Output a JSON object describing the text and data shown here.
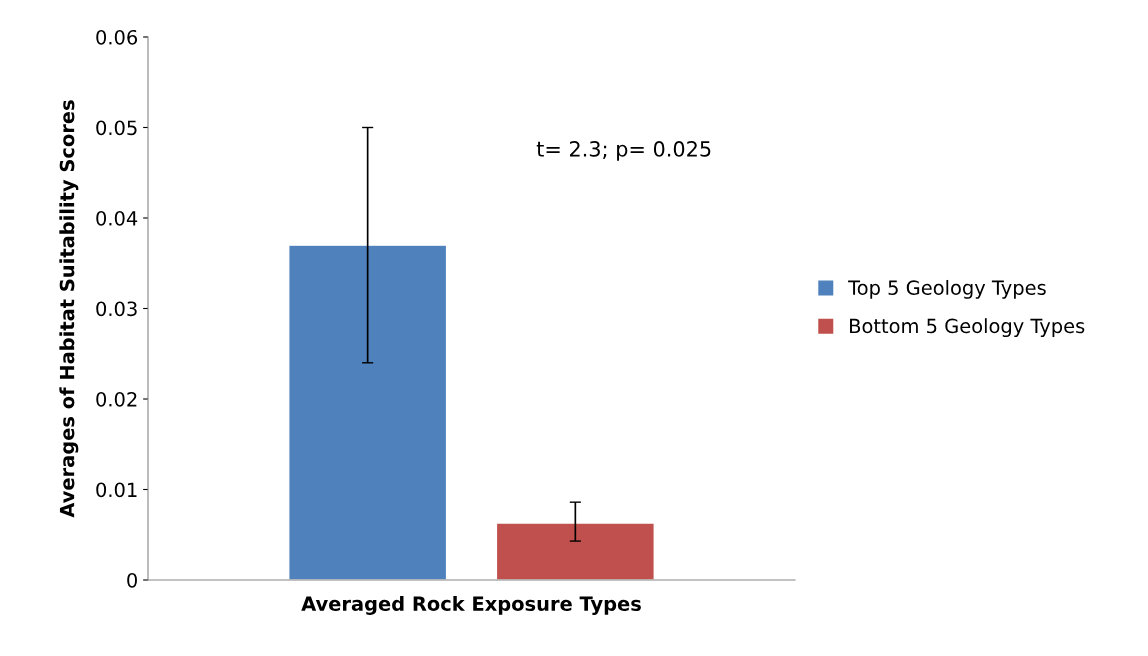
{
  "chart_data": {
    "type": "bar",
    "xlabel": "Averaged Rock Exposure Types",
    "ylabel": "Averages of Habitat Suitability Scores",
    "categories": [
      null
    ],
    "series": [
      {
        "name": "Top 5 Geology Types",
        "color": "#4f81bd",
        "values": [
          0.037
        ],
        "errors": [
          [
            0.024,
            0.05
          ]
        ]
      },
      {
        "name": "Bottom 5 Geology Types",
        "color": "#c0504d",
        "values": [
          0.0063
        ],
        "errors": [
          [
            0.0043,
            0.0086
          ]
        ]
      }
    ],
    "ylim": [
      0,
      0.06
    ],
    "yticks": [
      0,
      0.01,
      0.02,
      0.03,
      0.04,
      0.05,
      0.06
    ],
    "annotations": [
      "t= 2.3; p= 0.025"
    ],
    "grid": false,
    "legend": "right"
  }
}
